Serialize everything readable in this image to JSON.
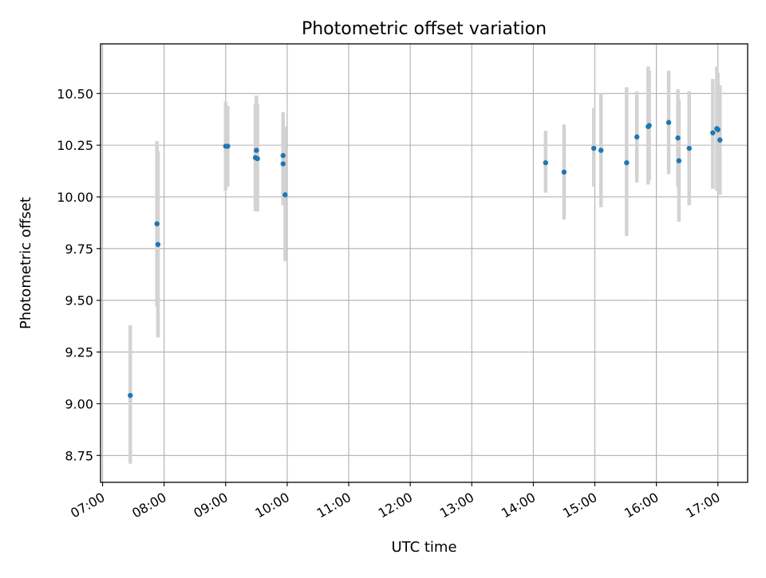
{
  "chart_data": {
    "type": "scatter",
    "title": "Photometric offset variation",
    "xlabel": "UTC time",
    "ylabel": "Photometric offset",
    "grid": true,
    "xlim": [
      "06:58",
      "17:29"
    ],
    "ylim": [
      8.62,
      10.74
    ],
    "x_ticks": [
      "07:00",
      "08:00",
      "09:00",
      "10:00",
      "11:00",
      "12:00",
      "13:00",
      "14:00",
      "15:00",
      "16:00",
      "17:00"
    ],
    "y_ticks": [
      "8.75",
      "9.00",
      "9.25",
      "9.50",
      "9.75",
      "10.00",
      "10.25",
      "10.50"
    ],
    "series": [
      {
        "marker_color": "#1f77b4",
        "errorbar_color": "#d3d3d3",
        "points": [
          {
            "x": "07:27",
            "y": 9.04,
            "ymin": 8.71,
            "ymax": 9.38
          },
          {
            "x": "07:53",
            "y": 9.87,
            "ymin": 9.47,
            "ymax": 10.27
          },
          {
            "x": "07:54",
            "y": 9.77,
            "ymin": 9.32,
            "ymax": 10.22
          },
          {
            "x": "09:00",
            "y": 10.245,
            "ymin": 10.03,
            "ymax": 10.46
          },
          {
            "x": "09:02",
            "y": 10.245,
            "ymin": 10.05,
            "ymax": 10.44
          },
          {
            "x": "09:29",
            "y": 10.19,
            "ymin": 9.93,
            "ymax": 10.45
          },
          {
            "x": "09:30",
            "y": 10.225,
            "ymin": 9.96,
            "ymax": 10.49
          },
          {
            "x": "09:31",
            "y": 10.185,
            "ymin": 9.93,
            "ymax": 10.45
          },
          {
            "x": "09:56",
            "y": 10.2,
            "ymin": 9.99,
            "ymax": 10.41
          },
          {
            "x": "09:56",
            "y": 10.16,
            "ymin": 9.96,
            "ymax": 10.37
          },
          {
            "x": "09:58",
            "y": 10.01,
            "ymin": 9.69,
            "ymax": 10.34
          },
          {
            "x": "14:12",
            "y": 10.165,
            "ymin": 10.02,
            "ymax": 10.32
          },
          {
            "x": "14:30",
            "y": 10.12,
            "ymin": 9.89,
            "ymax": 10.35
          },
          {
            "x": "14:59",
            "y": 10.235,
            "ymin": 10.05,
            "ymax": 10.43
          },
          {
            "x": "15:06",
            "y": 10.225,
            "ymin": 9.95,
            "ymax": 10.5
          },
          {
            "x": "15:31",
            "y": 10.165,
            "ymin": 9.81,
            "ymax": 10.53
          },
          {
            "x": "15:41",
            "y": 10.29,
            "ymin": 10.07,
            "ymax": 10.51
          },
          {
            "x": "15:52",
            "y": 10.34,
            "ymin": 10.06,
            "ymax": 10.63
          },
          {
            "x": "15:53",
            "y": 10.345,
            "ymin": 10.08,
            "ymax": 10.61
          },
          {
            "x": "16:12",
            "y": 10.36,
            "ymin": 10.11,
            "ymax": 10.61
          },
          {
            "x": "16:21",
            "y": 10.285,
            "ymin": 10.05,
            "ymax": 10.52
          },
          {
            "x": "16:22",
            "y": 10.175,
            "ymin": 9.88,
            "ymax": 10.47
          },
          {
            "x": "16:32",
            "y": 10.235,
            "ymin": 9.96,
            "ymax": 10.51
          },
          {
            "x": "16:55",
            "y": 10.31,
            "ymin": 10.04,
            "ymax": 10.57
          },
          {
            "x": "16:59",
            "y": 10.33,
            "ymin": 10.03,
            "ymax": 10.63
          },
          {
            "x": "17:00",
            "y": 10.325,
            "ymin": 10.05,
            "ymax": 10.6
          },
          {
            "x": "17:02",
            "y": 10.275,
            "ymin": 10.01,
            "ymax": 10.54
          }
        ]
      }
    ]
  }
}
